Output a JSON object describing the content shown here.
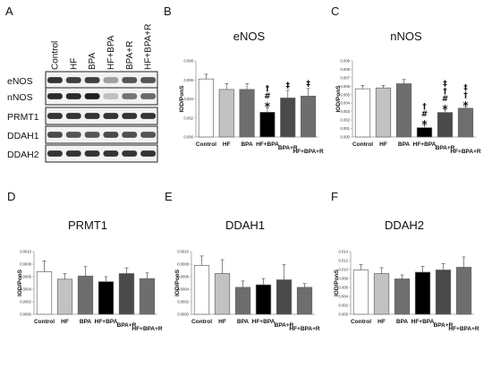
{
  "colors": {
    "bars": [
      "#ffffff",
      "#c2c2c2",
      "#6e6e6e",
      "#000000",
      "#4a4a4a",
      "#6e6e6e"
    ],
    "bar_stroke": "#666666",
    "axis": "#9a9a9a"
  },
  "panel_a": {
    "letter": "A",
    "lanes": [
      "Control",
      "HF",
      "BPA",
      "HF+BPA",
      "BPA+R",
      "HF+BPA+R"
    ],
    "blots": [
      "eNOS",
      "nNOS",
      "PRMT1",
      "DDAH1",
      "DDAH2"
    ]
  },
  "chart_data": [
    {
      "panel": "B",
      "type": "bar",
      "title": "eNOS",
      "ylabel": "IOD/PonS",
      "categories": [
        "Control",
        "HF",
        "BPA",
        "HF+BPA",
        "BPA+R",
        "HF+BPA+R"
      ],
      "values": [
        0.0061,
        0.005,
        0.005,
        0.0026,
        0.0041,
        0.0043
      ],
      "errors": [
        0.0005,
        0.0006,
        0.0006,
        0.0005,
        0.0008,
        0.0008
      ],
      "ylim": [
        0,
        0.008
      ],
      "yticks": [
        "0.000",
        "0.002",
        "0.004",
        "0.006",
        "0.008"
      ],
      "marks": [
        [],
        [],
        [],
        [
          "*",
          "#",
          "†"
        ],
        [
          "‡"
        ],
        [
          "‡"
        ]
      ]
    },
    {
      "panel": "C",
      "type": "bar",
      "title": "nNOS",
      "ylabel": "IOD/PonS",
      "categories": [
        "Control",
        "HF",
        "BPA",
        "HF+BPA",
        "BPA+R",
        "HF+BPA+R"
      ],
      "values": [
        0.0057,
        0.0058,
        0.0063,
        0.0011,
        0.0029,
        0.0034
      ],
      "errors": [
        0.0004,
        0.0003,
        0.0005,
        0.0003,
        0.0003,
        0.0002
      ],
      "ylim": [
        0,
        0.009
      ],
      "yticks": [
        "0.000",
        "0.001",
        "0.002",
        "0.003",
        "0.004",
        "0.005",
        "0.006",
        "0.007",
        "0.008",
        "0.009"
      ],
      "marks": [
        [],
        [],
        [],
        [
          "*",
          "#",
          "†"
        ],
        [
          "*",
          "#",
          "†",
          "‡"
        ],
        [
          "*",
          "†",
          "‡"
        ]
      ]
    },
    {
      "panel": "D",
      "type": "bar",
      "title": "PRMT1",
      "ylabel": "IOD/PonS",
      "categories": [
        "Control",
        "HF",
        "BPA",
        "HF+BPA",
        "BPA+R",
        "HF+BPA+R"
      ],
      "values": [
        0.00068,
        0.00056,
        0.00061,
        0.00052,
        0.00065,
        0.00057
      ],
      "errors": [
        0.00017,
        9e-05,
        0.00015,
        8e-05,
        9e-05,
        9e-05
      ],
      "ylim": [
        0,
        0.001
      ],
      "yticks": [
        "0.0000",
        "0.0002",
        "0.0004",
        "0.0006",
        "0.0008",
        "0.0010"
      ],
      "marks": [
        [],
        [],
        [],
        [],
        [],
        []
      ]
    },
    {
      "panel": "E",
      "type": "bar",
      "title": "DDAH1",
      "ylabel": "IOD/PonS",
      "categories": [
        "Control",
        "HF",
        "BPA",
        "HF+BPA",
        "BPA+R",
        "HF+BPA+R"
      ],
      "values": [
        0.00078,
        0.00065,
        0.00043,
        0.00047,
        0.00055,
        0.00043
      ],
      "errors": [
        0.00015,
        0.00022,
        0.0001,
        0.0001,
        0.00024,
        6e-05
      ],
      "ylim": [
        0,
        0.001
      ],
      "yticks": [
        "0.0000",
        "0.0002",
        "0.0004",
        "0.0006",
        "0.0008",
        "0.0010"
      ],
      "marks": [
        [],
        [],
        [],
        [],
        [],
        []
      ]
    },
    {
      "panel": "F",
      "type": "bar",
      "title": "DDAH2",
      "ylabel": "IOD/PonS",
      "categories": [
        "Control",
        "HF",
        "BPA",
        "HF+BPA",
        "BPA+R",
        "HF+BPA+R"
      ],
      "values": [
        0.0099,
        0.0091,
        0.0079,
        0.0094,
        0.0099,
        0.0105
      ],
      "errors": [
        0.0012,
        0.0013,
        0.0009,
        0.0013,
        0.0014,
        0.0023
      ],
      "ylim": [
        0,
        0.014
      ],
      "yticks": [
        "0.000",
        "0.002",
        "0.004",
        "0.006",
        "0.008",
        "0.010",
        "0.012",
        "0.014"
      ],
      "marks": [
        [],
        [],
        [],
        [],
        [],
        []
      ]
    }
  ]
}
